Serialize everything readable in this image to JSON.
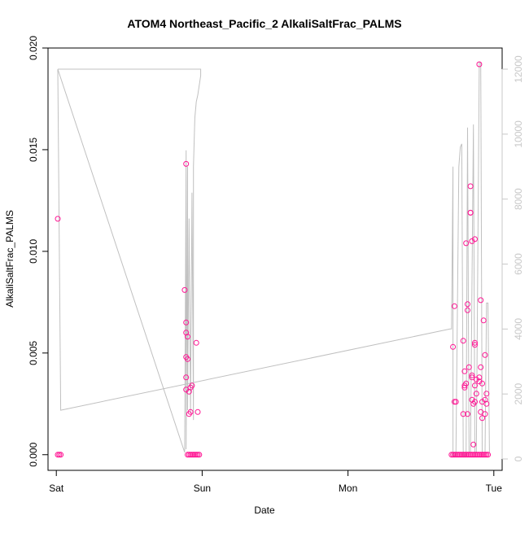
{
  "chart_data": {
    "type": "scatter",
    "title": "ATOM4 Northeast_Pacific_2 AlkaliSaltFrac_PALMS",
    "xlabel": "Date",
    "ylabel": "AlkaliSaltFrac_PALMS",
    "x_ticks": [
      "Sat",
      "Sun",
      "Mon",
      "Tue"
    ],
    "xlim_days": [
      0,
      3
    ],
    "ylim": [
      0,
      0.02
    ],
    "y_ticks": [
      "0.000",
      "0.005",
      "0.010",
      "0.015",
      "0.020"
    ],
    "y2lim": [
      0,
      12000
    ],
    "y2_ticks": [
      "0",
      "2000",
      "4000",
      "6000",
      "8000",
      "10000",
      "12000"
    ],
    "colors": {
      "points": "#ff1493",
      "line": "#c0c0c0",
      "axis": "#000000",
      "right_axis": "#c8c8c8"
    },
    "series": [
      {
        "kind": "points",
        "points": [
          [
            0.01,
            0.0116
          ],
          [
            0.02,
            0
          ],
          [
            0.01,
            0
          ],
          [
            0.03,
            0
          ],
          [
            0.89,
            0.0143
          ],
          [
            0.88,
            0.0081
          ],
          [
            0.89,
            0.0065
          ],
          [
            0.89,
            0.006
          ],
          [
            0.9,
            0.0058
          ],
          [
            0.89,
            0.0048
          ],
          [
            0.9,
            0.0047
          ],
          [
            0.89,
            0.0038
          ],
          [
            0.89,
            0.0032
          ],
          [
            0.92,
            0.0033
          ],
          [
            0.93,
            0.0034
          ],
          [
            0.91,
            0.0031
          ],
          [
            0.91,
            0.002
          ],
          [
            0.92,
            0.0021
          ],
          [
            0.96,
            0.0055
          ],
          [
            0.97,
            0.0021
          ],
          [
            0.9,
            0
          ],
          [
            0.91,
            0
          ],
          [
            0.92,
            0
          ],
          [
            0.93,
            0
          ],
          [
            0.94,
            0
          ],
          [
            0.95,
            0
          ],
          [
            0.96,
            0
          ],
          [
            0.97,
            0
          ],
          [
            0.98,
            0
          ],
          [
            2.72,
            0.0053
          ],
          [
            2.73,
            0.0073
          ],
          [
            2.73,
            0.0026
          ],
          [
            2.74,
            0.0026
          ],
          [
            2.79,
            0.0056
          ],
          [
            2.8,
            0.0041
          ],
          [
            2.8,
            0.0033
          ],
          [
            2.81,
            0.0035
          ],
          [
            2.81,
            0.0104
          ],
          [
            2.82,
            0.0074
          ],
          [
            2.82,
            0.0071
          ],
          [
            2.82,
            0.002
          ],
          [
            2.83,
            0.0043
          ],
          [
            2.84,
            0.0132
          ],
          [
            2.84,
            0.0119
          ],
          [
            2.84,
            0.0119
          ],
          [
            2.85,
            0.0105
          ],
          [
            2.85,
            0.0039
          ],
          [
            2.85,
            0.0038
          ],
          [
            2.85,
            0.0027
          ],
          [
            2.86,
            0.0025
          ],
          [
            2.86,
            0.0005
          ],
          [
            2.87,
            0.0106
          ],
          [
            2.87,
            0.0055
          ],
          [
            2.87,
            0.0054
          ],
          [
            2.87,
            0.0034
          ],
          [
            2.87,
            0.0026
          ],
          [
            2.88,
            0.0037
          ],
          [
            2.88,
            0.003
          ],
          [
            2.9,
            0.0192
          ],
          [
            2.9,
            0.0038
          ],
          [
            2.9,
            0.0036
          ],
          [
            2.91,
            0.0076
          ],
          [
            2.91,
            0.0043
          ],
          [
            2.91,
            0.0021
          ],
          [
            2.92,
            0.0035
          ],
          [
            2.92,
            0.0026
          ],
          [
            2.92,
            0.0018
          ],
          [
            2.93,
            0.0066
          ],
          [
            2.94,
            0.0049
          ],
          [
            2.94,
            0.0027
          ],
          [
            2.94,
            0.002
          ],
          [
            2.95,
            0.0025
          ],
          [
            2.95,
            0.003
          ],
          [
            2.79,
            0.002
          ],
          [
            2.8,
            0.0034
          ],
          [
            2.71,
            0
          ],
          [
            2.72,
            0
          ],
          [
            2.73,
            0
          ],
          [
            2.74,
            0
          ],
          [
            2.75,
            0
          ],
          [
            2.76,
            0
          ],
          [
            2.77,
            0
          ],
          [
            2.78,
            0
          ],
          [
            2.79,
            0
          ],
          [
            2.8,
            0
          ],
          [
            2.81,
            0
          ],
          [
            2.82,
            0
          ],
          [
            2.83,
            0
          ],
          [
            2.84,
            0
          ],
          [
            2.85,
            0
          ],
          [
            2.86,
            0
          ],
          [
            2.87,
            0
          ],
          [
            2.88,
            0
          ],
          [
            2.89,
            0
          ],
          [
            2.9,
            0
          ],
          [
            2.91,
            0
          ],
          [
            2.92,
            0
          ],
          [
            2.93,
            0
          ],
          [
            2.94,
            0
          ],
          [
            2.95,
            0
          ],
          [
            2.96,
            0
          ]
        ]
      },
      {
        "kind": "line",
        "axis": "right",
        "points": [
          [
            0.01,
            12000
          ],
          [
            0.99,
            12000
          ],
          [
            0.99,
            11800
          ],
          [
            0.97,
            11200
          ],
          [
            0.96,
            11000
          ],
          [
            0.95,
            10500
          ],
          [
            0.94,
            9000
          ],
          [
            0.94,
            1200
          ],
          [
            0.93,
            8200
          ],
          [
            0.92,
            1400
          ],
          [
            0.91,
            7400
          ],
          [
            0.9,
            1500
          ],
          [
            0.9,
            9000
          ],
          [
            0.89,
            300
          ],
          [
            0.89,
            9500
          ],
          [
            0.88,
            200
          ],
          [
            0.01,
            12000
          ],
          [
            0.03,
            1500
          ],
          [
            2.7,
            4000
          ],
          [
            2.71,
            4000
          ],
          [
            2.72,
            9000
          ],
          [
            2.72,
            100
          ],
          [
            2.74,
            100
          ],
          [
            2.76,
            9000
          ],
          [
            2.77,
            9600
          ],
          [
            2.78,
            9700
          ],
          [
            2.79,
            100
          ],
          [
            2.81,
            100
          ],
          [
            2.82,
            10200
          ],
          [
            2.83,
            200
          ],
          [
            2.84,
            200
          ],
          [
            2.86,
            10300
          ],
          [
            2.87,
            200
          ],
          [
            2.88,
            200
          ],
          [
            2.9,
            12200
          ],
          [
            2.91,
            12200
          ],
          [
            2.92,
            200
          ],
          [
            2.94,
            200
          ],
          [
            2.95,
            4800
          ],
          [
            2.96,
            4800
          ],
          [
            2.97,
            200
          ]
        ]
      }
    ]
  }
}
